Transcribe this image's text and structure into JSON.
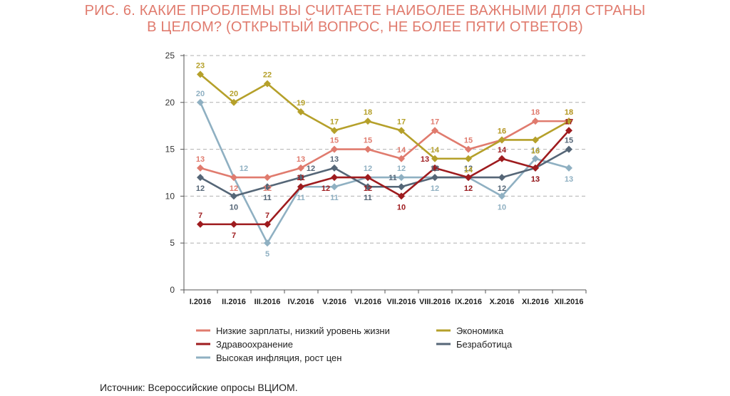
{
  "title_line1": "РИС. 6. КАКИЕ ПРОБЛЕМЫ ВЫ СЧИТАЕТЕ НАИБОЛЕЕ ВАЖНЫМИ ДЛЯ СТРАНЫ",
  "title_line2": "В ЦЕЛОМ? (ОТКРЫТЫЙ ВОПРОС, НЕ БОЛЕЕ ПЯТИ ОТВЕТОВ)",
  "source": "Источник: Всероссийские опросы ВЦИОМ.",
  "colors": {
    "title": "#e07b6e",
    "low_wages": "#e07b6e",
    "economy": "#b5a02a",
    "healthcare": "#9e1b1e",
    "unemployment": "#556677",
    "inflation": "#8fb0c2"
  },
  "chart_data": {
    "type": "line",
    "categories": [
      "I.2016",
      "II.2016",
      "III.2016",
      "IV.2016",
      "V.2016",
      "VI.2016",
      "VII.2016",
      "VIII.2016",
      "IX.2016",
      "X.2016",
      "XI.2016",
      "XII.2016"
    ],
    "ylim": [
      0,
      25
    ],
    "yticks": [
      0,
      5,
      10,
      15,
      20,
      25
    ],
    "grid": true,
    "legend_position": "bottom",
    "series": [
      {
        "key": "low_wages",
        "name": "Низкие зарплаты, низкий уровень жизни",
        "values": [
          13,
          12,
          12,
          13,
          15,
          15,
          14,
          17,
          15,
          16,
          18,
          18
        ]
      },
      {
        "key": "economy",
        "name": "Экономика",
        "values": [
          23,
          20,
          22,
          19,
          17,
          18,
          17,
          14,
          14,
          16,
          16,
          18
        ]
      },
      {
        "key": "healthcare",
        "name": "Здравоохранение",
        "values": [
          7,
          7,
          7,
          11,
          12,
          12,
          10,
          13,
          12,
          14,
          13,
          17
        ]
      },
      {
        "key": "unemployment",
        "name": "Безработица",
        "values": [
          12,
          10,
          11,
          12,
          13,
          11,
          11,
          12,
          12,
          12,
          13,
          15
        ]
      },
      {
        "key": "inflation",
        "name": "Высокая инфляция, рост цен",
        "values": [
          20,
          12,
          5,
          11,
          11,
          12,
          12,
          12,
          12,
          10,
          14,
          13
        ]
      }
    ]
  }
}
